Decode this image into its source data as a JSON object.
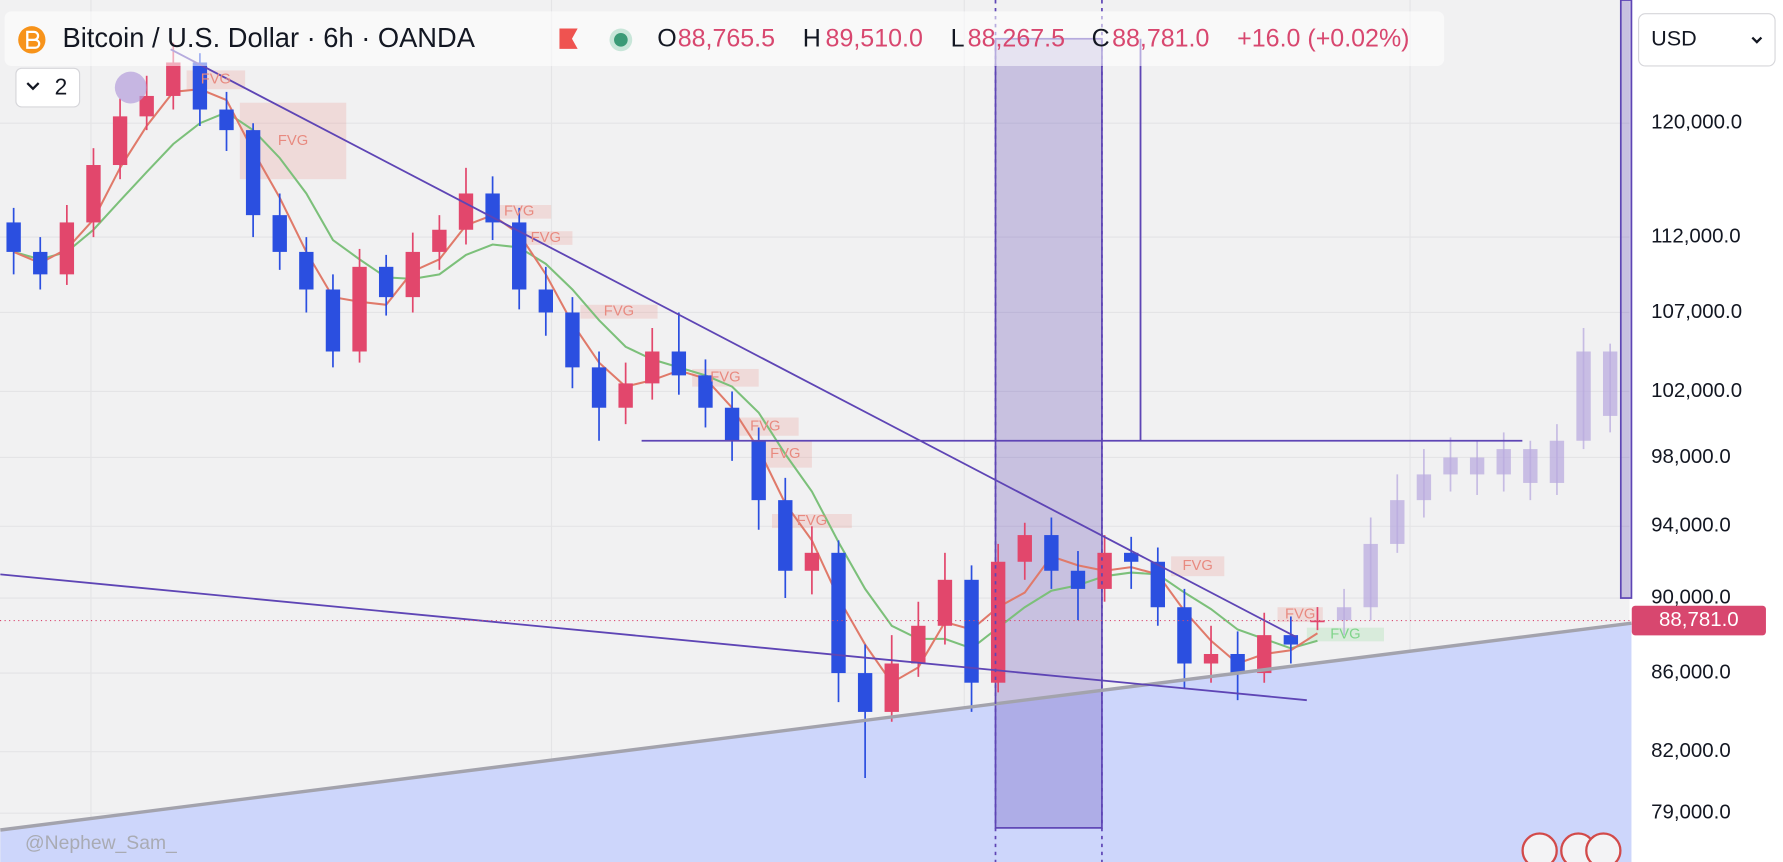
{
  "header": {
    "title": "Bitcoin / U.S. Dollar · 6h · OANDA",
    "ohlc": [
      {
        "key": "O",
        "value": "88,765.5"
      },
      {
        "key": "H",
        "value": "89,510.0"
      },
      {
        "key": "L",
        "value": "88,267.5"
      },
      {
        "key": "C",
        "value": "88,781.0"
      }
    ],
    "change": "+16.0 (+0.02%)",
    "indicators": "2",
    "currency": "USD",
    "watermark": "@Nephew_Sam_"
  },
  "chart_data": {
    "type": "candlestick",
    "log_scale": true,
    "grid": true,
    "ylim": [
      76700,
      129300
    ],
    "yticks": [
      {
        "value": 120000,
        "label": "120,000.0"
      },
      {
        "value": 112000,
        "label": "112,000.0"
      },
      {
        "value": 107000,
        "label": "107,000.0"
      },
      {
        "value": 102000,
        "label": "102,000.0"
      },
      {
        "value": 98000,
        "label": "98,000.0"
      },
      {
        "value": 94000,
        "label": "94,000.0"
      },
      {
        "value": 90000,
        "label": "90,000.0"
      },
      {
        "value": 86000,
        "label": "86,000.0"
      },
      {
        "value": 82000,
        "label": "82,000.0"
      },
      {
        "value": 79000,
        "label": "79,000.0"
      }
    ],
    "up_color": "#e2476c",
    "down_color": "#2b4fe0",
    "open": [
      113000,
      111000,
      109500,
      113000,
      117000,
      120500,
      122000,
      124500,
      121000,
      119500,
      113500,
      111000,
      108500,
      104500,
      110000,
      108000,
      111000,
      112500,
      115000,
      113000,
      108500,
      107000,
      103500,
      101000,
      102500,
      104500,
      103000,
      101000,
      99000,
      95500,
      91500,
      92500,
      86000,
      84000,
      86500,
      88500,
      91000,
      85500,
      92000,
      93500,
      91500,
      90500,
      92500,
      92000,
      89500,
      86500,
      87000,
      86000,
      88000,
      88765.5
    ],
    "high": [
      114000,
      112000,
      114200,
      118200,
      121800,
      123500,
      126000,
      125200,
      122300,
      120000,
      115000,
      112000,
      109500,
      111200,
      110800,
      112300,
      113500,
      116800,
      116200,
      114000,
      110000,
      108000,
      104500,
      103800,
      106000,
      107000,
      104000,
      102000,
      99800,
      96800,
      94000,
      93200,
      87500,
      88000,
      89800,
      92500,
      91800,
      93000,
      94200,
      94500,
      92600,
      93500,
      93400,
      92800,
      90500,
      88500,
      88200,
      89200,
      89000,
      89510
    ],
    "low": [
      109500,
      108500,
      108800,
      112000,
      116000,
      119500,
      121000,
      119800,
      118000,
      112000,
      109800,
      107000,
      103500,
      103800,
      106800,
      107000,
      109800,
      111500,
      111800,
      107200,
      105500,
      102200,
      99000,
      100000,
      101500,
      101800,
      99800,
      97800,
      93800,
      90000,
      90200,
      84500,
      80700,
      83500,
      85800,
      87500,
      84000,
      85000,
      91000,
      90500,
      88800,
      89800,
      90500,
      88500,
      85200,
      85500,
      84600,
      85500,
      86500,
      88267.5
    ],
    "close": [
      111000,
      109500,
      113000,
      117000,
      120500,
      122000,
      124500,
      121000,
      119500,
      113500,
      111000,
      108500,
      104500,
      110000,
      108000,
      111000,
      112500,
      115000,
      113000,
      108500,
      107000,
      103500,
      101000,
      102500,
      104500,
      103000,
      101000,
      99000,
      95500,
      91500,
      92500,
      86000,
      84000,
      86500,
      88500,
      91000,
      85500,
      92000,
      93500,
      91500,
      90500,
      92500,
      92000,
      89500,
      86500,
      87000,
      86000,
      88000,
      87500,
      88781
    ],
    "ma_fast": {
      "color": "#e07a6a",
      "values": [
        111000,
        110250,
        111200,
        113200,
        116800,
        119800,
        122300,
        122500,
        121700,
        118000,
        114700,
        111000,
        108000,
        107700,
        107500,
        109700,
        110500,
        112800,
        113500,
        112200,
        109500,
        106300,
        103800,
        102300,
        102700,
        103300,
        102800,
        101000,
        98500,
        95300,
        93200,
        90000,
        87500,
        85500,
        86300,
        88700,
        88300,
        89500,
        90300,
        92300,
        91800,
        91500,
        91700,
        91300,
        89300,
        87700,
        86500,
        87000,
        87200,
        88100
      ]
    },
    "ma_slow": {
      "color": "#7cc07a",
      "values": [
        111000,
        110500,
        111000,
        112500,
        114500,
        116500,
        118500,
        120000,
        120800,
        119500,
        117500,
        115000,
        111800,
        110500,
        109300,
        109200,
        109500,
        110800,
        111500,
        111300,
        110200,
        108500,
        106500,
        104800,
        104000,
        103500,
        103000,
        102300,
        100700,
        98200,
        96000,
        93100,
        90500,
        88500,
        87800,
        87800,
        87300,
        88400,
        89500,
        90400,
        90700,
        91200,
        91400,
        91300,
        90300,
        89400,
        88300,
        87800,
        87300,
        87700
      ]
    },
    "projection": {
      "start": 50,
      "color": "#b9abdf",
      "open": [
        88800,
        89500,
        93000,
        95500,
        97000,
        98000,
        97000,
        98500,
        96500,
        99000,
        104500
      ],
      "high": [
        90500,
        94500,
        97000,
        98500,
        99200,
        99000,
        99500,
        99000,
        100000,
        106000,
        105000
      ],
      "low": [
        88000,
        88800,
        92500,
        94500,
        96000,
        95800,
        96000,
        95500,
        95800,
        98500,
        99500
      ],
      "close": [
        89500,
        93000,
        95500,
        97000,
        98000,
        97000,
        98500,
        96500,
        99000,
        104500,
        100500
      ]
    },
    "last_price": {
      "value": 88781,
      "label": "88,781.0",
      "color": "#d8476f"
    },
    "fvg": [
      {
        "label": "FVG",
        "start": 6.5,
        "end": 8.7,
        "low": 122500,
        "high": 123900,
        "color": "#e88a80"
      },
      {
        "label": "FVG",
        "start": 8.5,
        "end": 12.5,
        "low": 116000,
        "high": 121500,
        "color": "#e88a80"
      },
      {
        "label": "FVG",
        "start": 17.8,
        "end": 20.2,
        "low": 113300,
        "high": 114200,
        "color": "#e88a80"
      },
      {
        "label": "FVG",
        "start": 19,
        "end": 21,
        "low": 111500,
        "high": 112400,
        "color": "#e88a80"
      },
      {
        "label": "FVG",
        "start": 21.3,
        "end": 24.2,
        "low": 106600,
        "high": 107500,
        "color": "#e88a80"
      },
      {
        "label": "FVG",
        "start": 25.5,
        "end": 28,
        "low": 102300,
        "high": 103400,
        "color": "#e88a80"
      },
      {
        "label": "FVG",
        "start": 27,
        "end": 29.5,
        "low": 99300,
        "high": 100400,
        "color": "#e88a80"
      },
      {
        "label": "FVG",
        "start": 28,
        "end": 30,
        "low": 97400,
        "high": 99000,
        "color": "#e88a80"
      },
      {
        "label": "FVG",
        "start": 28.5,
        "end": 31.5,
        "low": 93900,
        "high": 94700,
        "color": "#e88a80"
      },
      {
        "label": "FVG",
        "start": 43.5,
        "end": 45.5,
        "low": 91200,
        "high": 92300,
        "color": "#e88a80"
      },
      {
        "label": "FVG",
        "start": 47.5,
        "end": 49.2,
        "low": 88700,
        "high": 89500,
        "color": "#e88a80"
      },
      {
        "label": "FVG",
        "start": 48.6,
        "end": 51.5,
        "low": 87700,
        "high": 88400,
        "color": "#7fd48a"
      }
    ],
    "drawing_color": "#5e45b5",
    "drawings": [
      {
        "kind": "line",
        "points": [
          [
            5.9,
            125500
          ],
          [
            48.2,
            87900
          ]
        ]
      },
      {
        "kind": "line",
        "points": [
          [
            -0.5,
            91300
          ],
          [
            48.6,
            84600
          ]
        ]
      },
      {
        "kind": "line",
        "points": [
          [
            23.6,
            99000
          ],
          [
            56.7,
            99000
          ]
        ]
      },
      {
        "kind": "line",
        "points": [
          [
            42.35,
            126300
          ],
          [
            42.35,
            99000
          ]
        ]
      },
      {
        "kind": "box",
        "points": [
          [
            36.9,
            126300
          ],
          [
            40.9,
            78300
          ]
        ]
      },
      {
        "kind": "box",
        "points": [
          [
            60.4,
            129300
          ],
          [
            60.8,
            90000
          ]
        ]
      }
    ],
    "support": {
      "color": "#a3a3ad",
      "fill": "#cdd6fb",
      "points": [
        [
          -0.5,
          78200
        ],
        [
          60.8,
          88640
        ]
      ]
    }
  }
}
